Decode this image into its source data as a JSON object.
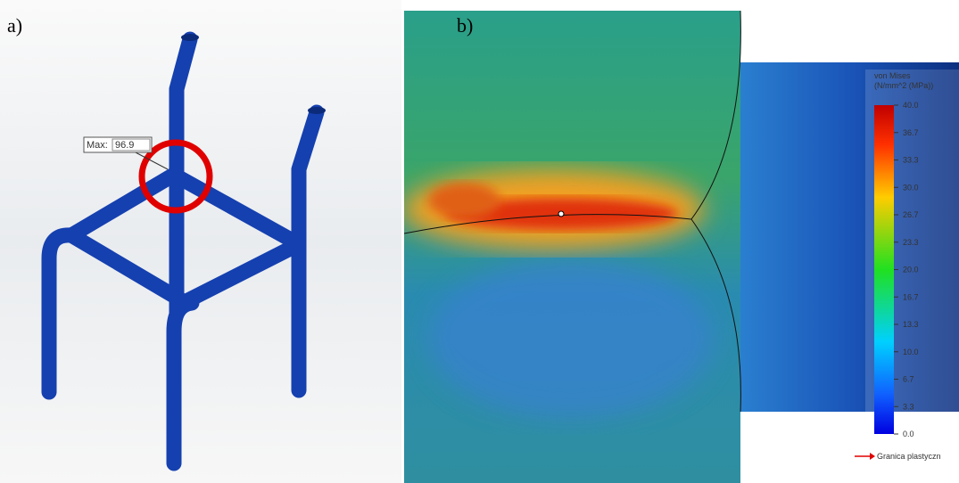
{
  "labels": {
    "a": "a)",
    "b": "b)"
  },
  "probe": {
    "label": "Max:",
    "value": "96.9"
  },
  "legend": {
    "title": "von Mises",
    "unit": "(N/mm^2 (MPa))",
    "ticks": [
      "40.0",
      "36.7",
      "33.3",
      "30.0",
      "26.7",
      "23.3",
      "20.0",
      "16.7",
      "13.3",
      "10.0",
      "6.7",
      "3.3",
      "0.0"
    ],
    "note": "Granica plastyczn"
  }
}
